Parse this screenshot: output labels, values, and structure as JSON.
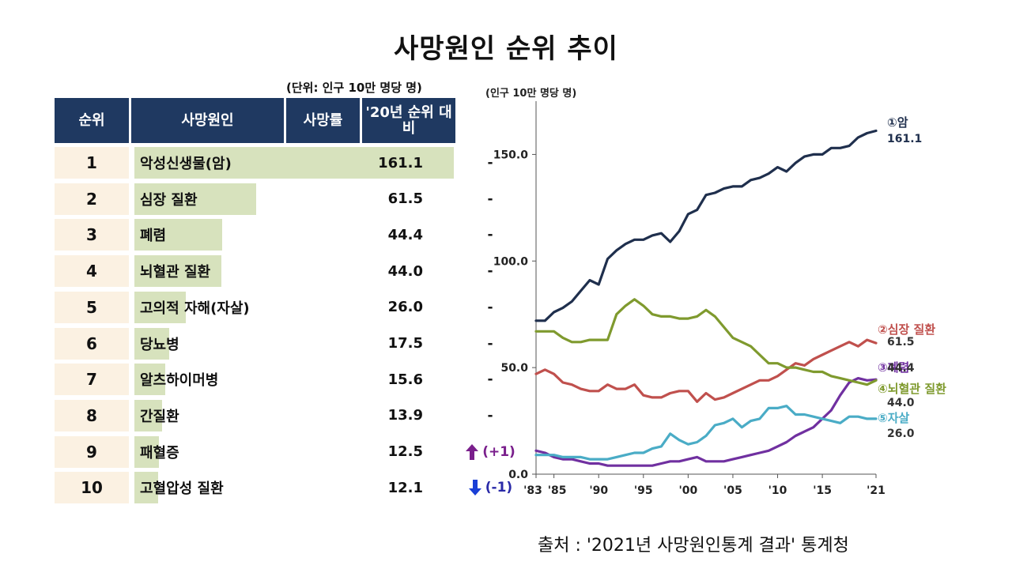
{
  "title": "사망원인 순위 추이",
  "table": {
    "unit": "(단위: 인구 10만 명당 명)",
    "headers": [
      "순위",
      "사망원인",
      "사망률",
      "'20년 순위 대비"
    ],
    "max_rate": 161.1,
    "rows": [
      {
        "rank": "1",
        "cause": "악성신생물(암)",
        "rate": "161.1",
        "value": 161.1,
        "change": "-",
        "change_dir": "none"
      },
      {
        "rank": "2",
        "cause": "심장 질환",
        "rate": "61.5",
        "value": 61.5,
        "change": "-",
        "change_dir": "none"
      },
      {
        "rank": "3",
        "cause": "폐렴",
        "rate": "44.4",
        "value": 44.4,
        "change": "-",
        "change_dir": "none"
      },
      {
        "rank": "4",
        "cause": "뇌혈관 질환",
        "rate": "44.0",
        "value": 44.0,
        "change": "-",
        "change_dir": "none"
      },
      {
        "rank": "5",
        "cause": "고의적 자해(자살)",
        "rate": "26.0",
        "value": 26.0,
        "change": "-",
        "change_dir": "none"
      },
      {
        "rank": "6",
        "cause": "당뇨병",
        "rate": "17.5",
        "value": 17.5,
        "change": "-",
        "change_dir": "none"
      },
      {
        "rank": "7",
        "cause": "알츠하이머병",
        "rate": "15.6",
        "value": 15.6,
        "change": "-",
        "change_dir": "none"
      },
      {
        "rank": "8",
        "cause": "간질환",
        "rate": "13.9",
        "value": 13.9,
        "change": "-",
        "change_dir": "none"
      },
      {
        "rank": "9",
        "cause": "패혈증",
        "rate": "12.5",
        "value": 12.5,
        "change": "(+1)",
        "change_dir": "up"
      },
      {
        "rank": "10",
        "cause": "고혈압성 질환",
        "rate": "12.1",
        "value": 12.1,
        "change": "(-1)",
        "change_dir": "down"
      }
    ]
  },
  "chart_data": {
    "type": "line",
    "ylabel": "(인구 10만 명당 명)",
    "xlim": [
      1983,
      2021
    ],
    "ylim": [
      0,
      175
    ],
    "y_ticks": [
      0,
      50,
      100,
      150
    ],
    "y_tick_labels": [
      "0.0",
      "50.0",
      "100.0",
      "150.0"
    ],
    "x_ticks": [
      1983,
      1985,
      1990,
      1995,
      2000,
      2005,
      2010,
      2015,
      2021
    ],
    "x_tick_labels": [
      "'83",
      "'85",
      "'90",
      "'95",
      "'00",
      "'05",
      "'10",
      "'15",
      "'21"
    ],
    "grid": false,
    "series": [
      {
        "name": "①암",
        "end_label": "161.1",
        "color": "#1f2f4d",
        "x": [
          1983,
          1984,
          1985,
          1986,
          1987,
          1988,
          1989,
          1990,
          1991,
          1992,
          1993,
          1994,
          1995,
          1996,
          1997,
          1998,
          1999,
          2000,
          2001,
          2002,
          2003,
          2004,
          2005,
          2006,
          2007,
          2008,
          2009,
          2010,
          2011,
          2012,
          2013,
          2014,
          2015,
          2016,
          2017,
          2018,
          2019,
          2020,
          2021
        ],
        "y": [
          72,
          72,
          76,
          78,
          81,
          86,
          91,
          89,
          101,
          105,
          108,
          110,
          110,
          112,
          113,
          109,
          114,
          122,
          124,
          131,
          132,
          134,
          135,
          135,
          138,
          139,
          141,
          144,
          142,
          146,
          149,
          150,
          150,
          153,
          153,
          154,
          158,
          160,
          161.1
        ]
      },
      {
        "name": "②심장 질환",
        "end_label": "61.5",
        "color": "#c0504d",
        "x": [
          1983,
          1984,
          1985,
          1986,
          1987,
          1988,
          1989,
          1990,
          1991,
          1992,
          1993,
          1994,
          1995,
          1996,
          1997,
          1998,
          1999,
          2000,
          2001,
          2002,
          2003,
          2004,
          2005,
          2006,
          2007,
          2008,
          2009,
          2010,
          2011,
          2012,
          2013,
          2014,
          2015,
          2016,
          2017,
          2018,
          2019,
          2020,
          2021
        ],
        "y": [
          47,
          49,
          47,
          43,
          42,
          40,
          39,
          39,
          42,
          40,
          40,
          42,
          37,
          36,
          36,
          38,
          39,
          39,
          34,
          38,
          35,
          36,
          38,
          40,
          42,
          44,
          44,
          46,
          49,
          52,
          51,
          54,
          56,
          58,
          60,
          62,
          60,
          63,
          61.5
        ]
      },
      {
        "name": "③폐렴",
        "end_label": "44.4",
        "color": "#7030a0",
        "x": [
          1983,
          1984,
          1985,
          1986,
          1987,
          1988,
          1989,
          1990,
          1991,
          1992,
          1993,
          1994,
          1995,
          1996,
          1997,
          1998,
          1999,
          2000,
          2001,
          2002,
          2003,
          2004,
          2005,
          2006,
          2007,
          2008,
          2009,
          2010,
          2011,
          2012,
          2013,
          2014,
          2015,
          2016,
          2017,
          2018,
          2019,
          2020,
          2021
        ],
        "y": [
          11,
          10,
          8,
          7,
          7,
          6,
          5,
          5,
          4,
          4,
          4,
          4,
          4,
          4,
          5,
          6,
          6,
          7,
          8,
          6,
          6,
          6,
          7,
          8,
          9,
          10,
          11,
          13,
          15,
          18,
          20,
          22,
          26,
          30,
          37,
          43,
          45,
          44,
          44.4
        ]
      },
      {
        "name": "④뇌혈관 질환",
        "end_label": "44.0",
        "color": "#7f9a2e",
        "x": [
          1983,
          1984,
          1985,
          1986,
          1987,
          1988,
          1989,
          1990,
          1991,
          1992,
          1993,
          1994,
          1995,
          1996,
          1997,
          1998,
          1999,
          2000,
          2001,
          2002,
          2003,
          2004,
          2005,
          2006,
          2007,
          2008,
          2009,
          2010,
          2011,
          2012,
          2013,
          2014,
          2015,
          2016,
          2017,
          2018,
          2019,
          2020,
          2021
        ],
        "y": [
          67,
          67,
          67,
          64,
          62,
          62,
          63,
          63,
          63,
          75,
          79,
          82,
          79,
          75,
          74,
          74,
          73,
          73,
          74,
          77,
          74,
          69,
          64,
          62,
          60,
          56,
          52,
          52,
          50,
          50,
          49,
          48,
          48,
          46,
          45,
          44,
          43,
          42,
          44.0
        ]
      },
      {
        "name": "⑤자살",
        "end_label": "26.0",
        "color": "#4aacc6",
        "x": [
          1983,
          1984,
          1985,
          1986,
          1987,
          1988,
          1989,
          1990,
          1991,
          1992,
          1993,
          1994,
          1995,
          1996,
          1997,
          1998,
          1999,
          2000,
          2001,
          2002,
          2003,
          2004,
          2005,
          2006,
          2007,
          2008,
          2009,
          2010,
          2011,
          2012,
          2013,
          2014,
          2015,
          2016,
          2017,
          2018,
          2019,
          2020,
          2021
        ],
        "y": [
          9,
          9,
          9,
          8,
          8,
          8,
          7,
          7,
          7,
          8,
          9,
          10,
          10,
          12,
          13,
          19,
          16,
          14,
          15,
          18,
          23,
          24,
          26,
          22,
          25,
          26,
          31,
          31,
          32,
          28,
          28,
          27,
          26,
          25,
          24,
          27,
          27,
          26,
          26.0
        ]
      }
    ]
  },
  "source": "출처 : '2021년 사망원인통계 결과' 통계청"
}
